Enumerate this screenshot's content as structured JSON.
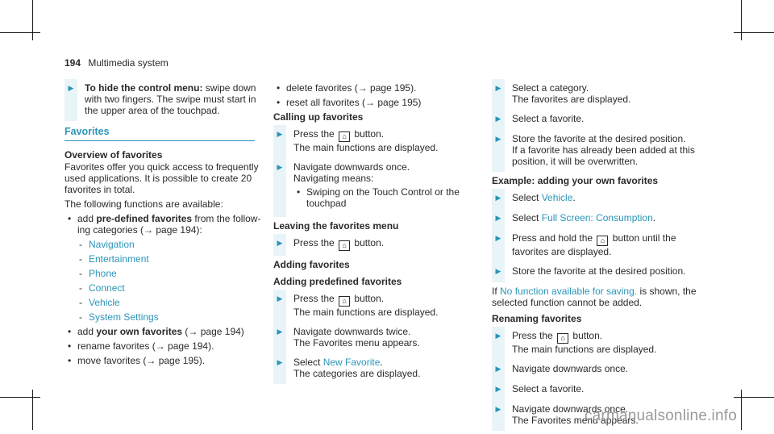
{
  "header": {
    "page_number": "194",
    "section": "Multimedia system"
  },
  "col1": {
    "step_hide": {
      "title": "To hide the control menu:",
      "text": "swipe down with two fingers. The swipe must start in the upper area of the touchpad."
    },
    "favorites_title": "Favorites",
    "overview_title": "Overview of favorites",
    "overview_text": "Favorites offer you quick access to frequently used applications. It is possible to create 20 favorites in total.",
    "functions_intro": "The following functions are available:",
    "predef": {
      "prefix": "add",
      "bold": "pre-defined favorites",
      "suffix": "from the follow-ing categories (→ page 194):"
    },
    "categories": [
      "Navigation",
      "Entertainment",
      "Phone",
      "Connect",
      "Vehicle",
      "System Settings"
    ],
    "own": {
      "prefix": "add",
      "bold": "your own favorites",
      "suffix": "(→ page 194)"
    },
    "rename": "rename favorites (→ page 194).",
    "move": "move favorites (→ page 195)."
  },
  "col2": {
    "delete": "delete favorites (→ page 195).",
    "reset": "reset all favorites (→ page 195)",
    "calling_title": "Calling up favorites",
    "press_home_a": "Press the",
    "press_home_b": "button.",
    "main_displayed": "The main functions are displayed.",
    "nav_once": "Navigate downwards once.",
    "nav_means": "Navigating means:",
    "swiping": "Swiping on the Touch Control or the touchpad",
    "leaving_title": "Leaving the favorites menu",
    "adding_title": "Adding favorites",
    "adding_predef_title": "Adding predefined favorites",
    "nav_twice": "Navigate downwards twice.",
    "menu_appears": "The Favorites menu appears.",
    "select_prefix": "Select",
    "new_favorite": "New Favorite",
    "categories_displayed": "The categories are displayed."
  },
  "col3": {
    "select_category": "Select a category.",
    "favs_displayed": "The favorites are displayed.",
    "select_fav": "Select a favorite.",
    "store": "Store the favorite at the desired position.",
    "store_note": "If a favorite has already been added at this position, it will be overwritten.",
    "example_title": "Example: adding your own favorites",
    "vehicle": "Vehicle",
    "full_screen": "Full Screen: Consumption",
    "press_hold_a": "Press and hold the",
    "press_hold_b": "button until the favorites are displayed.",
    "if": "If",
    "no_function": "No function available for saving.",
    "not_added": "is shown, the selected function cannot be added.",
    "renaming_title": "Renaming favorites"
  },
  "watermark": "carmanualsonline.info"
}
